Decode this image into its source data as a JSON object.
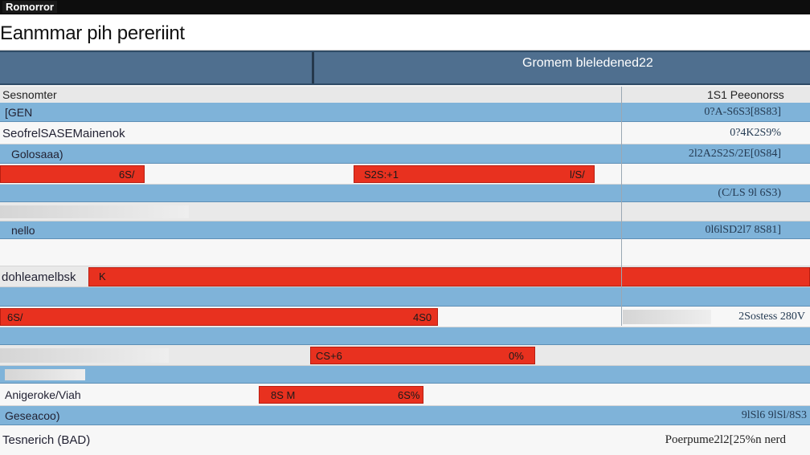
{
  "app": {
    "window_title": "Romorror",
    "title": "Eanmmar pih pereriint"
  },
  "header": {
    "label": "Gromem bleledened22"
  },
  "columns": {
    "left": "Sesnomter",
    "right": "1S1 Peeonorss"
  },
  "rows": [
    {
      "left": "[GEN",
      "right": "0?A-S6S3[8S83]"
    },
    {
      "left": "SeofrelSASEMainenok",
      "right": "0?4K2S9%"
    },
    {
      "left": "Golosaaa)",
      "right": "2l2A2S2S/2E[0S84]"
    },
    {
      "bars": [
        "6S/",
        "S2S:+1",
        "l/S/"
      ]
    },
    {
      "left": "",
      "right": "(C/LS 9l 6S3)"
    },
    {
      "left": "nello",
      "right": "0l6lSD2l7 8S81]"
    },
    {
      "left": "dohleamelbsk",
      "bar": "K"
    },
    {
      "bar_left": "6S/",
      "bar_right": "4S0",
      "right": "2Sostess 280V"
    },
    {
      "bars": [
        "CS+6",
        "0%"
      ]
    },
    {
      "left": "Anigeroke/Viah",
      "bars": [
        "8S M",
        "6S%"
      ]
    },
    {
      "left": "Geseacoo)",
      "right": "9lSl6 9lSl/8S3"
    }
  ],
  "footer": {
    "left": "Tesnerich (BAD)",
    "right": "Poerpume2l2[25%n nerd"
  },
  "colors": {
    "accent_red": "#e8311f",
    "row_blue": "#7fb3d9",
    "header_bg": "#4f6f8f"
  }
}
